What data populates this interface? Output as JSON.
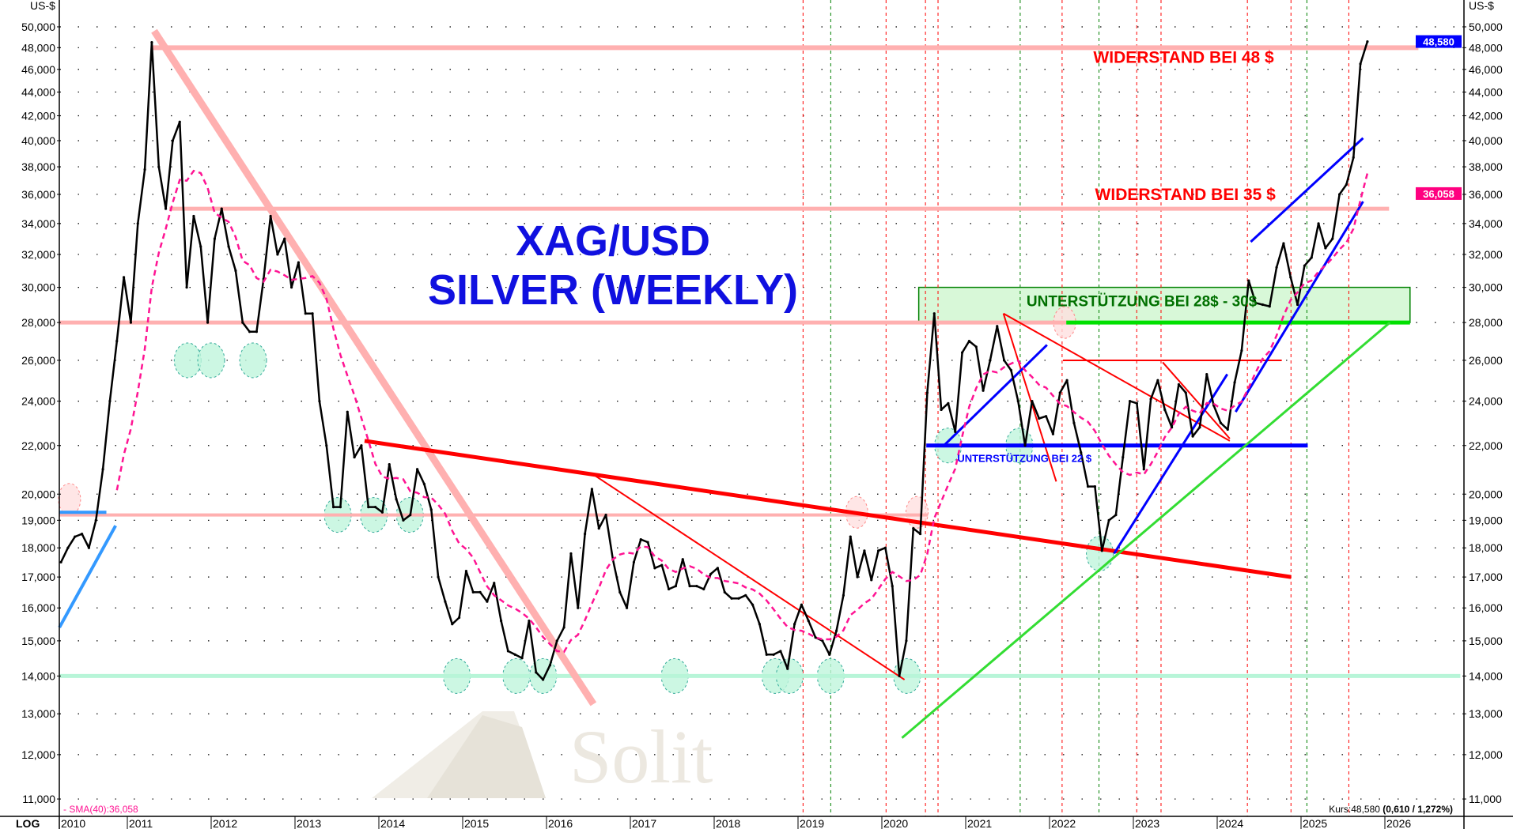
{
  "chart_data": {
    "type": "line",
    "title": "XAG/USD",
    "subtitle": "SILVER (WEEKLY)",
    "y_unit_left": "US-$",
    "y_unit_right": "US-$",
    "scale_label": "LOG",
    "y_scale": "log",
    "ylim": [
      11.0,
      50.0
    ],
    "xlim": [
      2010.19,
      2026.9
    ],
    "grid": "dotted",
    "y_ticks": [
      {
        "v": 11,
        "label": "11,000"
      },
      {
        "v": 12,
        "label": "12,000"
      },
      {
        "v": 13,
        "label": "13,000"
      },
      {
        "v": 14,
        "label": "14,000"
      },
      {
        "v": 15,
        "label": "15,000"
      },
      {
        "v": 16,
        "label": "16,000"
      },
      {
        "v": 17,
        "label": "17,000"
      },
      {
        "v": 18,
        "label": "18,000"
      },
      {
        "v": 19,
        "label": "19,000"
      },
      {
        "v": 20,
        "label": "20,000"
      },
      {
        "v": 22,
        "label": "22,000"
      },
      {
        "v": 24,
        "label": "24,000"
      },
      {
        "v": 26,
        "label": "26,000"
      },
      {
        "v": 28,
        "label": "28,000"
      },
      {
        "v": 30,
        "label": "30,000"
      },
      {
        "v": 32,
        "label": "32,000"
      },
      {
        "v": 34,
        "label": "34,000"
      },
      {
        "v": 36,
        "label": "36,000"
      },
      {
        "v": 38,
        "label": "38,000"
      },
      {
        "v": 40,
        "label": "40,000"
      },
      {
        "v": 42,
        "label": "42,000"
      },
      {
        "v": 44,
        "label": "44,000"
      },
      {
        "v": 46,
        "label": "46,000"
      },
      {
        "v": 48,
        "label": "48,000"
      },
      {
        "v": 50,
        "label": "50,000"
      }
    ],
    "x_ticks": [
      "2010",
      "2011",
      "2012",
      "2013",
      "2014",
      "2015",
      "2016",
      "2017",
      "2018",
      "2019",
      "2020",
      "2021",
      "2022",
      "2023",
      "2024",
      "2025",
      "2026"
    ],
    "series": [
      {
        "name": "Kurs",
        "color": "#000000",
        "start_month": "2010-03",
        "monthly_close": [
          17.5,
          18.0,
          18.4,
          18.5,
          18.0,
          19.0,
          21.0,
          24.0,
          27.0,
          30.6,
          28.0,
          34.0,
          37.8,
          48.5,
          38.0,
          35.0,
          40.0,
          41.5,
          30.0,
          34.5,
          32.5,
          28.0,
          33.0,
          35.0,
          32.5,
          31.0,
          28.0,
          27.5,
          27.5,
          30.5,
          34.5,
          32.0,
          33.0,
          30.0,
          31.5,
          28.5,
          28.5,
          24.0,
          22.0,
          19.5,
          19.5,
          23.5,
          21.5,
          22.0,
          19.5,
          19.5,
          19.3,
          21.2,
          19.8,
          19.0,
          19.2,
          21.0,
          20.4,
          19.4,
          17.0,
          16.2,
          15.5,
          15.7,
          17.2,
          16.5,
          16.5,
          16.2,
          16.8,
          15.6,
          14.7,
          14.6,
          14.5,
          15.6,
          14.1,
          13.9,
          14.3,
          15.0,
          15.4,
          17.8,
          16.0,
          18.5,
          20.2,
          18.7,
          19.2,
          17.6,
          16.5,
          16.0,
          17.5,
          18.3,
          18.2,
          17.3,
          17.4,
          16.6,
          16.7,
          17.6,
          16.7,
          16.7,
          16.6,
          17.1,
          17.3,
          16.5,
          16.3,
          16.3,
          16.4,
          16.1,
          15.5,
          14.6,
          14.6,
          14.7,
          14.2,
          15.5,
          16.1,
          15.6,
          15.1,
          15.0,
          14.6,
          15.3,
          16.4,
          18.4,
          17.0,
          17.9,
          16.9,
          17.9,
          18.0,
          16.7,
          14.0,
          15.0,
          18.7,
          18.5,
          24.4,
          28.5,
          23.6,
          23.9,
          22.6,
          26.4,
          27.0,
          26.7,
          24.5,
          26.0,
          27.8,
          26.0,
          25.5,
          24.0,
          22.0,
          24.0,
          23.2,
          23.3,
          22.5,
          24.4,
          25.0,
          23.0,
          21.7,
          20.3,
          20.3,
          17.9,
          19.0,
          19.2,
          21.5,
          24.0,
          23.9,
          21.0,
          24.1,
          25.0,
          23.6,
          22.8,
          24.8,
          24.4,
          22.4,
          22.8,
          25.3,
          23.8,
          23.0,
          22.7,
          24.9,
          26.5,
          30.4,
          29.1,
          29.0,
          28.9,
          31.2,
          32.7,
          30.6,
          29.0,
          31.3,
          31.8,
          34.0,
          32.4,
          33.0,
          36.0,
          36.7,
          38.7,
          46.5,
          48.58
        ]
      },
      {
        "name": "SMA(40)",
        "color": "#ff1493",
        "last_value": 36.058
      }
    ],
    "last_price_badge": {
      "label": "48,580",
      "color": "#0000ff"
    },
    "sma_badge": {
      "label": "36,058",
      "color": "#ff0080"
    },
    "sma_legend": "- SMA(40):36,058",
    "kurs_legend": {
      "prefix": "Kurs:48,580 ",
      "change": "(0,610 / 1,272%)"
    },
    "cycle_lines": [
      {
        "t": 2019.06,
        "color": "#ff0000"
      },
      {
        "t": 2019.39,
        "color": "#008000"
      },
      {
        "t": 2020.05,
        "color": "#ff0000"
      },
      {
        "t": 2020.52,
        "color": "#ff0000"
      },
      {
        "t": 2020.67,
        "color": "#ff0000"
      },
      {
        "t": 2021.65,
        "color": "#008000"
      },
      {
        "t": 2022.15,
        "color": "#ff0000"
      },
      {
        "t": 2022.59,
        "color": "#008000"
      },
      {
        "t": 2023.04,
        "color": "#ff0000"
      },
      {
        "t": 2023.33,
        "color": "#ff0000"
      },
      {
        "t": 2024.36,
        "color": "#ff0000"
      },
      {
        "t": 2024.88,
        "color": "#ff0000"
      },
      {
        "t": 2025.07,
        "color": "#008000"
      },
      {
        "t": 2025.57,
        "color": "#ff0000"
      }
    ],
    "support_zone": {
      "t1": 2020.44,
      "t2": 2026.3,
      "v1": 28.0,
      "v2": 30.0,
      "fill": "#d8f8d8",
      "stroke": "#008000"
    },
    "lines": [
      {
        "t1": 2011.3,
        "v1": 48,
        "t2": 2026.4,
        "v2": 48,
        "color": "#ffb0b0",
        "w": 6
      },
      {
        "t1": 2011.5,
        "v1": 35,
        "t2": 2026.05,
        "v2": 35,
        "color": "#ffb0b0",
        "w": 5
      },
      {
        "t1": 2010.19,
        "v1": 28,
        "t2": 2022.2,
        "v2": 28,
        "color": "#ffb0b0",
        "w": 5
      },
      {
        "t1": 2010.19,
        "v1": 19.2,
        "t2": 2020.55,
        "v2": 19.2,
        "color": "#ffb0b0",
        "w": 4
      },
      {
        "t1": 2010.19,
        "v1": 14,
        "t2": 2026.9,
        "v2": 14,
        "color": "#b8f5d8",
        "w": 5
      },
      {
        "t1": 2011.32,
        "v1": 49.6,
        "t2": 2016.56,
        "v2": 13.25,
        "color": "#ffb0b0",
        "w": 9
      },
      {
        "t1": 2013.83,
        "v1": 22.2,
        "t2": 2024.88,
        "v2": 17.0,
        "color": "#ff0000",
        "w": 5
      },
      {
        "t1": 2016.55,
        "v1": 20.8,
        "t2": 2020.27,
        "v2": 13.9,
        "color": "#ff0000",
        "w": 2
      },
      {
        "t1": 2021.45,
        "v1": 28.5,
        "t2": 2024.15,
        "v2": 22.2,
        "color": "#ff0000",
        "w": 2
      },
      {
        "t1": 2021.45,
        "v1": 28.5,
        "t2": 2022.08,
        "v2": 20.5,
        "color": "#ff0000",
        "w": 2
      },
      {
        "t1": 2022.16,
        "v1": 26,
        "t2": 2024.77,
        "v2": 26,
        "color": "#ff0000",
        "w": 2
      },
      {
        "t1": 2023.35,
        "v1": 25.9,
        "t2": 2024.15,
        "v2": 22.3,
        "color": "#ff0000",
        "w": 2
      },
      {
        "t1": 2022.2,
        "v1": 28,
        "t2": 2026.3,
        "v2": 28,
        "color": "#00e000",
        "w": 5
      },
      {
        "t1": 2020.53,
        "v1": 22,
        "t2": 2025.08,
        "v2": 22,
        "color": "#0000ff",
        "w": 5
      },
      {
        "t1": 2020.74,
        "v1": 22,
        "t2": 2021.97,
        "v2": 26.8,
        "color": "#0000ff",
        "w": 3
      },
      {
        "t1": 2022.77,
        "v1": 17.8,
        "t2": 2024.12,
        "v2": 25.3,
        "color": "#0000ff",
        "w": 3
      },
      {
        "t1": 2024.22,
        "v1": 23.5,
        "t2": 2025.74,
        "v2": 35.5,
        "color": "#0000ff",
        "w": 3
      },
      {
        "t1": 2024.4,
        "v1": 32.8,
        "t2": 2025.74,
        "v2": 40.2,
        "color": "#0000ff",
        "w": 3
      },
      {
        "t1": 2010.19,
        "v1": 15.4,
        "t2": 2010.86,
        "v2": 18.8,
        "color": "#3399ff",
        "w": 4
      },
      {
        "t1": 2010.19,
        "v1": 19.3,
        "t2": 2010.75,
        "v2": 19.3,
        "color": "#3399ff",
        "w": 4
      },
      {
        "t1": 2020.24,
        "v1": 12.4,
        "t2": 2026.06,
        "v2": 28.0,
        "color": "#33dd33",
        "w": 3
      }
    ],
    "support_marks": [
      {
        "t": 2011.72,
        "v": 26
      },
      {
        "t": 2012.0,
        "v": 26
      },
      {
        "t": 2012.5,
        "v": 26
      },
      {
        "t": 2013.51,
        "v": 19.2
      },
      {
        "t": 2013.94,
        "v": 19.2
      },
      {
        "t": 2014.37,
        "v": 19.2
      },
      {
        "t": 2014.93,
        "v": 14
      },
      {
        "t": 2015.64,
        "v": 14
      },
      {
        "t": 2015.96,
        "v": 14
      },
      {
        "t": 2017.53,
        "v": 14
      },
      {
        "t": 2018.73,
        "v": 14
      },
      {
        "t": 2018.9,
        "v": 14
      },
      {
        "t": 2019.39,
        "v": 14
      },
      {
        "t": 2020.3,
        "v": 14
      },
      {
        "t": 2020.79,
        "v": 22
      },
      {
        "t": 2021.64,
        "v": 22
      },
      {
        "t": 2022.6,
        "v": 17.8
      }
    ],
    "resistance_marks": [
      {
        "t": 2010.31,
        "v": 19.8
      },
      {
        "t": 2019.7,
        "v": 19.3
      },
      {
        "t": 2020.42,
        "v": 19.3
      },
      {
        "t": 2022.18,
        "v": 28
      }
    ],
    "annotations": [
      {
        "text": "WIDERSTAND BEI 48 $",
        "t": 2023.6,
        "v": 46.6,
        "color": "#ff0000",
        "size": 21
      },
      {
        "text": "WIDERSTAND BEI 35 $",
        "t": 2023.62,
        "v": 35.6,
        "color": "#ff0000",
        "size": 21
      },
      {
        "text": "UNTERSTÜTZUNG BEI 28$ - 30$",
        "t": 2023.1,
        "v": 28.9,
        "color": "#007000",
        "size": 19
      },
      {
        "text": "UNTERSTÜTZUNG BEI 22 $",
        "t": 2021.7,
        "v": 21.3,
        "color": "#0000ff",
        "size": 13
      }
    ]
  },
  "watermark": "Solit"
}
